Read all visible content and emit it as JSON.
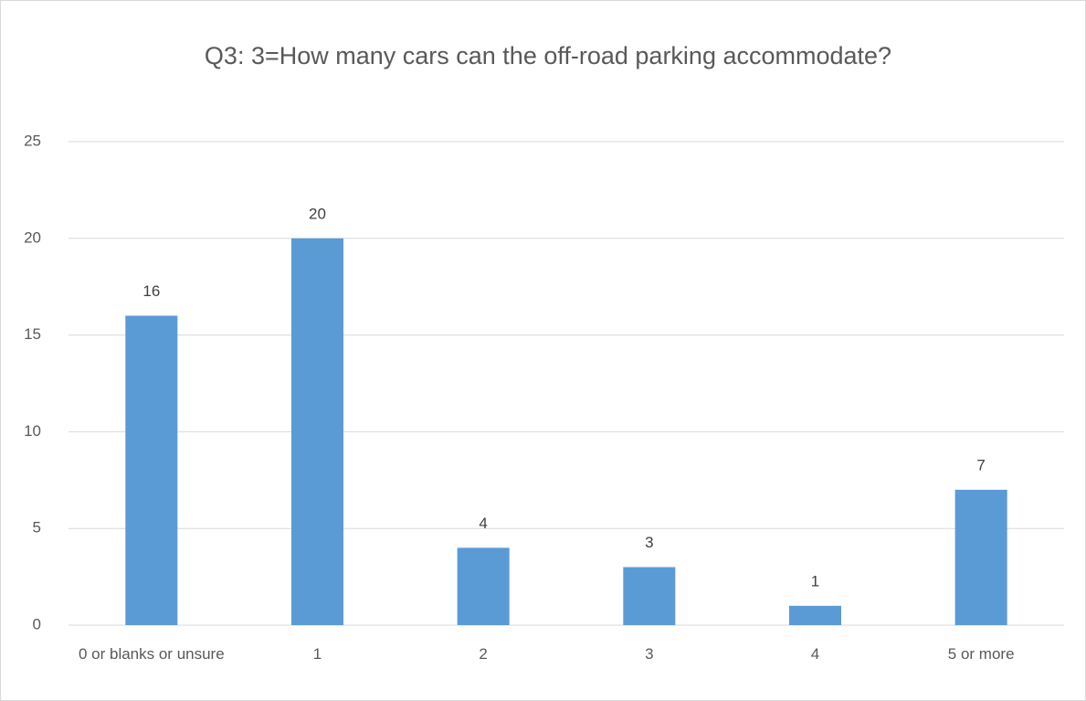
{
  "chart_data": {
    "type": "bar",
    "title": "Q3: 3=How many cars can the off-road parking accommodate?",
    "categories": [
      "0 or blanks or unsure",
      "1",
      "2",
      "3",
      "4",
      "5 or more"
    ],
    "values": [
      16,
      20,
      4,
      3,
      1,
      7
    ],
    "color": "#5b9bd5",
    "ylim": [
      0,
      25
    ],
    "yticks": [
      0,
      5,
      10,
      15,
      20,
      25
    ],
    "grid": true
  }
}
